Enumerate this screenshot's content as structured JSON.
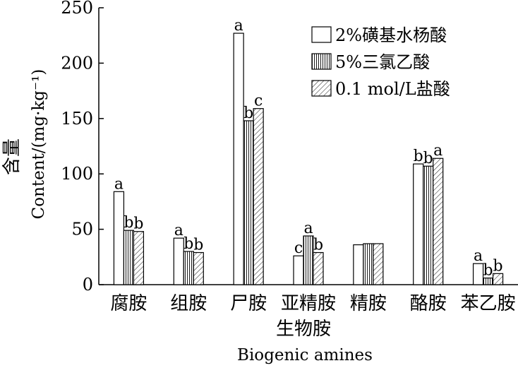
{
  "chart_data": {
    "type": "bar",
    "categories": [
      "腐胺",
      "组胺",
      "尸胺",
      "亚精胺",
      "精胺",
      "酪胺",
      "苯乙胺"
    ],
    "series": [
      {
        "name": "2%磺基水杨酸",
        "pattern": "blank",
        "values": [
          84,
          42,
          227,
          26,
          36,
          109,
          19
        ],
        "labels": [
          "a",
          "a",
          "a",
          "c",
          "",
          "b",
          "a"
        ]
      },
      {
        "name": "5%三氯乙酸",
        "pattern": "vertical",
        "values": [
          49,
          30,
          148,
          44,
          37,
          107,
          6
        ],
        "labels": [
          "b",
          "b",
          "b",
          "a",
          "",
          "b",
          "b"
        ]
      },
      {
        "name": "0.1 mol/L盐酸",
        "pattern": "diagonal",
        "values": [
          48,
          29,
          159,
          29,
          37,
          114,
          10
        ],
        "labels": [
          "b",
          "b",
          "c",
          "b",
          "",
          "a",
          "b"
        ]
      }
    ],
    "ylabel_cn": "含量",
    "ylabel_en": "Content/(mg·kg⁻¹)",
    "xlabel_cn": "生物胺",
    "xlabel_en": "Biogenic amines",
    "ylim": [
      0,
      250
    ],
    "yticks": [
      0,
      50,
      100,
      150,
      200,
      250
    ],
    "grid": false,
    "legend_position": "top-right"
  }
}
